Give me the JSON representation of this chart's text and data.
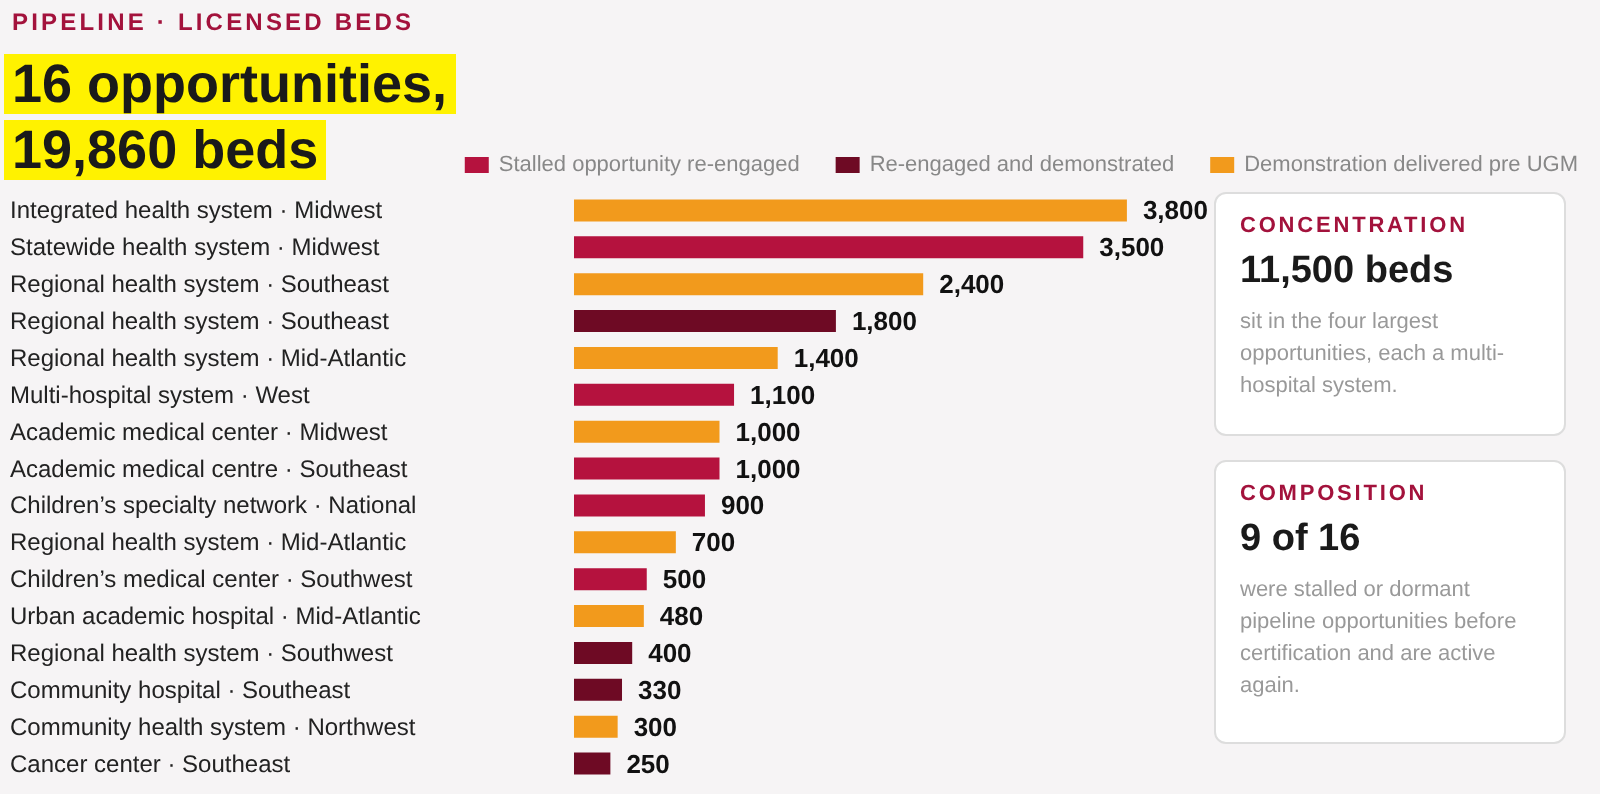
{
  "chart_data": {
    "type": "bar",
    "orientation": "horizontal",
    "subtitle": "PIPELINE · LICENSED BEDS",
    "title": "16 opportunities,\n19,860 beds",
    "categories": [
      "Integrated health system · Midwest",
      "Statewide health system · Midwest",
      "Regional health system · Southeast",
      "Regional health system · Southeast",
      "Regional health system · Mid-Atlantic",
      "Multi-hospital system · West",
      "Academic medical center · Midwest",
      "Academic medical centre · Southeast",
      "Children’s specialty network · National",
      "Regional health system · Mid-Atlantic",
      "Children’s medical center · Southwest",
      "Urban academic hospital · Mid-Atlantic",
      "Regional health system · Southwest",
      "Community hospital · Southeast",
      "Community health system · Northwest",
      "Cancer center · Southeast"
    ],
    "series": [
      {
        "name": "Stalled opportunity re-engaged",
        "color": "#b5123e",
        "values": [
          null,
          3500,
          null,
          null,
          null,
          1100,
          null,
          1000,
          900,
          null,
          500,
          null,
          null,
          null,
          null,
          null
        ],
        "value_labels": [
          null,
          "3,500",
          null,
          null,
          null,
          "1,100",
          null,
          "1,000",
          "900",
          null,
          "500",
          null,
          null,
          null,
          null,
          null
        ]
      },
      {
        "name": "Re-engaged and demonstrated",
        "color": "#6e0a24",
        "values": [
          null,
          null,
          null,
          1800,
          null,
          null,
          null,
          null,
          null,
          null,
          null,
          null,
          400,
          330,
          null,
          250
        ],
        "value_labels": [
          null,
          null,
          null,
          "1,800",
          null,
          null,
          null,
          null,
          null,
          null,
          null,
          null,
          "400",
          "330",
          null,
          "250"
        ]
      },
      {
        "name": "Demonstration delivered pre UGM",
        "color": "#f29a1c",
        "values": [
          3800,
          null,
          2400,
          null,
          1400,
          null,
          1000,
          null,
          null,
          700,
          null,
          480,
          null,
          null,
          300,
          null
        ],
        "value_labels": [
          "3,800",
          null,
          "2,400",
          null,
          "1,400",
          null,
          "1,000",
          null,
          null,
          "700",
          null,
          "480",
          null,
          null,
          "300",
          null
        ]
      }
    ],
    "legend": "top",
    "annotations": [
      "CONCENTRATION",
      "11,500 beds",
      "sit in the four largest opportunities, each a multi-hospital system.",
      "COMPOSITION",
      "9 of 16",
      "were stalled or dormant pipeline opportunities before certification and are active again."
    ]
  }
}
